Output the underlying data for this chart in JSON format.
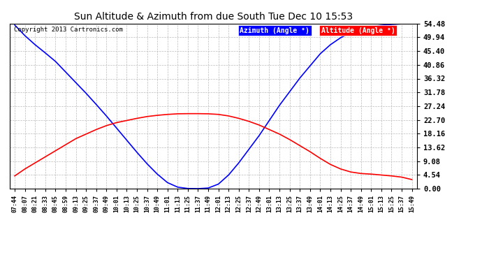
{
  "title": "Sun Altitude & Azimuth from due South Tue Dec 10 15:53",
  "copyright": "Copyright 2013 Cartronics.com",
  "legend_labels": [
    "Azimuth (Angle °)",
    "Altitude (Angle °)"
  ],
  "legend_colors": [
    "blue",
    "red"
  ],
  "ytick_labels": [
    "0.00",
    "4.54",
    "9.08",
    "13.62",
    "18.16",
    "22.70",
    "27.24",
    "31.78",
    "36.32",
    "40.86",
    "45.40",
    "49.94",
    "54.48"
  ],
  "ymax": 54.48,
  "ymin": 0.0,
  "background_color": "#ffffff",
  "plot_bg_color": "#ffffff",
  "grid_color": "#bbbbbb",
  "azimuth_color": "blue",
  "altitude_color": "red",
  "x_times": [
    "07:44",
    "08:07",
    "08:21",
    "08:33",
    "08:45",
    "08:59",
    "09:13",
    "09:25",
    "09:37",
    "09:49",
    "10:01",
    "10:13",
    "10:25",
    "10:37",
    "10:49",
    "11:01",
    "11:13",
    "11:25",
    "11:37",
    "11:49",
    "12:01",
    "12:13",
    "12:25",
    "12:37",
    "12:49",
    "13:01",
    "13:13",
    "13:25",
    "13:37",
    "13:49",
    "14:01",
    "14:13",
    "14:25",
    "14:37",
    "14:49",
    "15:01",
    "15:13",
    "15:25",
    "15:37",
    "15:49"
  ],
  "azimuth_values": [
    54.0,
    50.5,
    47.5,
    44.8,
    42.0,
    38.5,
    35.0,
    31.5,
    27.8,
    24.0,
    20.0,
    16.0,
    12.0,
    8.2,
    4.8,
    2.0,
    0.5,
    0.05,
    0.0,
    0.2,
    1.5,
    4.5,
    8.5,
    13.0,
    17.5,
    22.5,
    27.5,
    32.0,
    36.5,
    40.5,
    44.5,
    47.5,
    49.8,
    51.5,
    52.8,
    53.5,
    53.9,
    54.2,
    54.4,
    54.48
  ],
  "altitude_values": [
    4.2,
    6.5,
    8.5,
    10.5,
    12.5,
    14.5,
    16.5,
    18.0,
    19.5,
    20.8,
    21.8,
    22.5,
    23.2,
    23.8,
    24.2,
    24.5,
    24.7,
    24.75,
    24.75,
    24.7,
    24.5,
    24.0,
    23.2,
    22.2,
    21.0,
    19.5,
    18.0,
    16.2,
    14.2,
    12.2,
    10.0,
    8.0,
    6.5,
    5.5,
    5.0,
    4.8,
    4.5,
    4.2,
    3.8,
    3.0
  ]
}
